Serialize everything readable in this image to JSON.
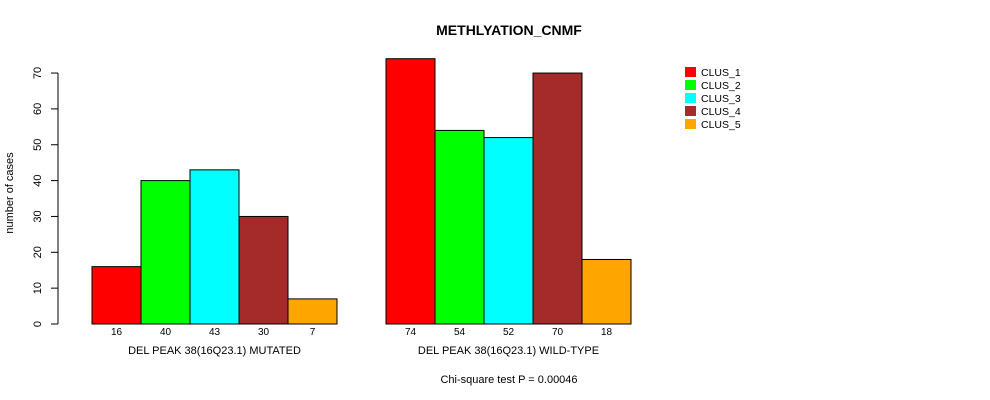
{
  "chart_data": {
    "type": "bar",
    "title": "METHLYATION_CNMF",
    "ylabel": "number of cases",
    "ylim": [
      0,
      70
    ],
    "yticks": [
      "0",
      "10",
      "20",
      "30",
      "40",
      "50",
      "60",
      "70"
    ],
    "groups": [
      {
        "label": "DEL PEAK 38(16Q23.1) MUTATED",
        "values": [
          16,
          40,
          43,
          30,
          7
        ],
        "value_labels": [
          "16",
          "40",
          "43",
          "30",
          "7"
        ]
      },
      {
        "label": "DEL PEAK 38(16Q23.1) WILD-TYPE",
        "values": [
          74,
          54,
          52,
          70,
          18
        ],
        "value_labels": [
          "74",
          "54",
          "52",
          "70",
          "18"
        ]
      }
    ],
    "series": [
      {
        "name": "CLUS_1",
        "color": "#ff0000"
      },
      {
        "name": "CLUS_2",
        "color": "#00ff00"
      },
      {
        "name": "CLUS_3",
        "color": "#00ffff"
      },
      {
        "name": "CLUS_4",
        "color": "#a52a2a"
      },
      {
        "name": "CLUS_5",
        "color": "#ffa500"
      }
    ],
    "legend_position": "top-right",
    "footnote": "Chi-square test P = 0.00046"
  }
}
